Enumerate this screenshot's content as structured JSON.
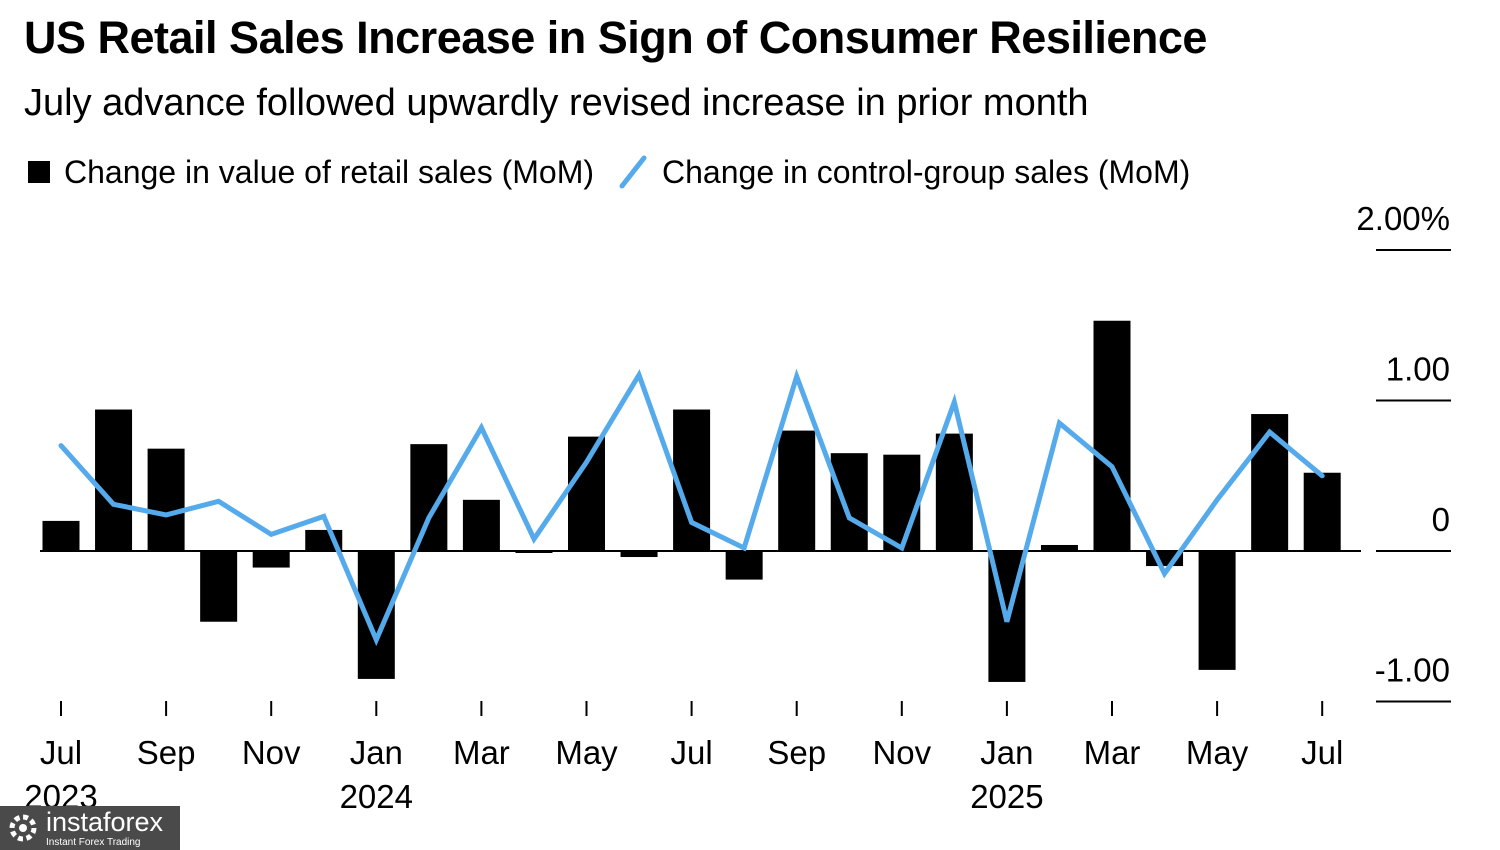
{
  "chart_data": {
    "type": "bar",
    "title": "US Retail Sales Increase in Sign of Consumer Resilience",
    "subtitle": "July advance followed upwardly revised increase in prior month",
    "legend": [
      {
        "label": "Change in value of retail sales (MoM)",
        "kind": "bar",
        "color": "#000000"
      },
      {
        "label": "Change in control-group sales (MoM)",
        "kind": "line",
        "color": "#55aaec"
      }
    ],
    "y_axis": {
      "min": -1.0,
      "max": 2.0,
      "position": "right",
      "ticks": [
        {
          "value": 2.0,
          "label": "2.00%"
        },
        {
          "value": 1.0,
          "label": "1.00"
        },
        {
          "value": 0.0,
          "label": "0"
        },
        {
          "value": -1.0,
          "label": "-1.00"
        }
      ]
    },
    "x_axis": {
      "tick_every": 2,
      "month_labels": [
        "Jul",
        "Sep",
        "Nov",
        "Jan",
        "Mar",
        "May",
        "Jul",
        "Sep",
        "Nov",
        "Jan",
        "Mar",
        "May",
        "Jul"
      ],
      "year_labels": [
        {
          "text": "2023",
          "tick_index": 0
        },
        {
          "text": "2024",
          "tick_index": 3
        },
        {
          "text": "2025",
          "tick_index": 9
        }
      ]
    },
    "series": [
      {
        "name": "Change in value of retail sales (MoM)",
        "kind": "bar",
        "color": "#000000",
        "values": [
          0.2,
          0.94,
          0.68,
          -0.47,
          -0.11,
          0.14,
          -0.85,
          0.71,
          0.34,
          -0.01,
          0.76,
          -0.04,
          0.94,
          -0.19,
          0.8,
          0.65,
          0.64,
          0.78,
          -0.87,
          0.04,
          1.53,
          -0.1,
          -0.79,
          0.91,
          0.52
        ]
      },
      {
        "name": "Change in control-group sales (MoM)",
        "kind": "line",
        "color": "#55aaec",
        "values": [
          0.7,
          0.31,
          0.24,
          0.33,
          0.11,
          0.23,
          -0.59,
          0.22,
          0.82,
          0.08,
          0.59,
          1.17,
          0.19,
          0.02,
          1.16,
          0.22,
          0.02,
          0.99,
          -0.47,
          0.85,
          0.56,
          -0.15,
          0.34,
          0.79,
          0.5
        ]
      }
    ]
  },
  "watermark": {
    "brand": "instaforex",
    "tagline": "Instant Forex Trading"
  }
}
